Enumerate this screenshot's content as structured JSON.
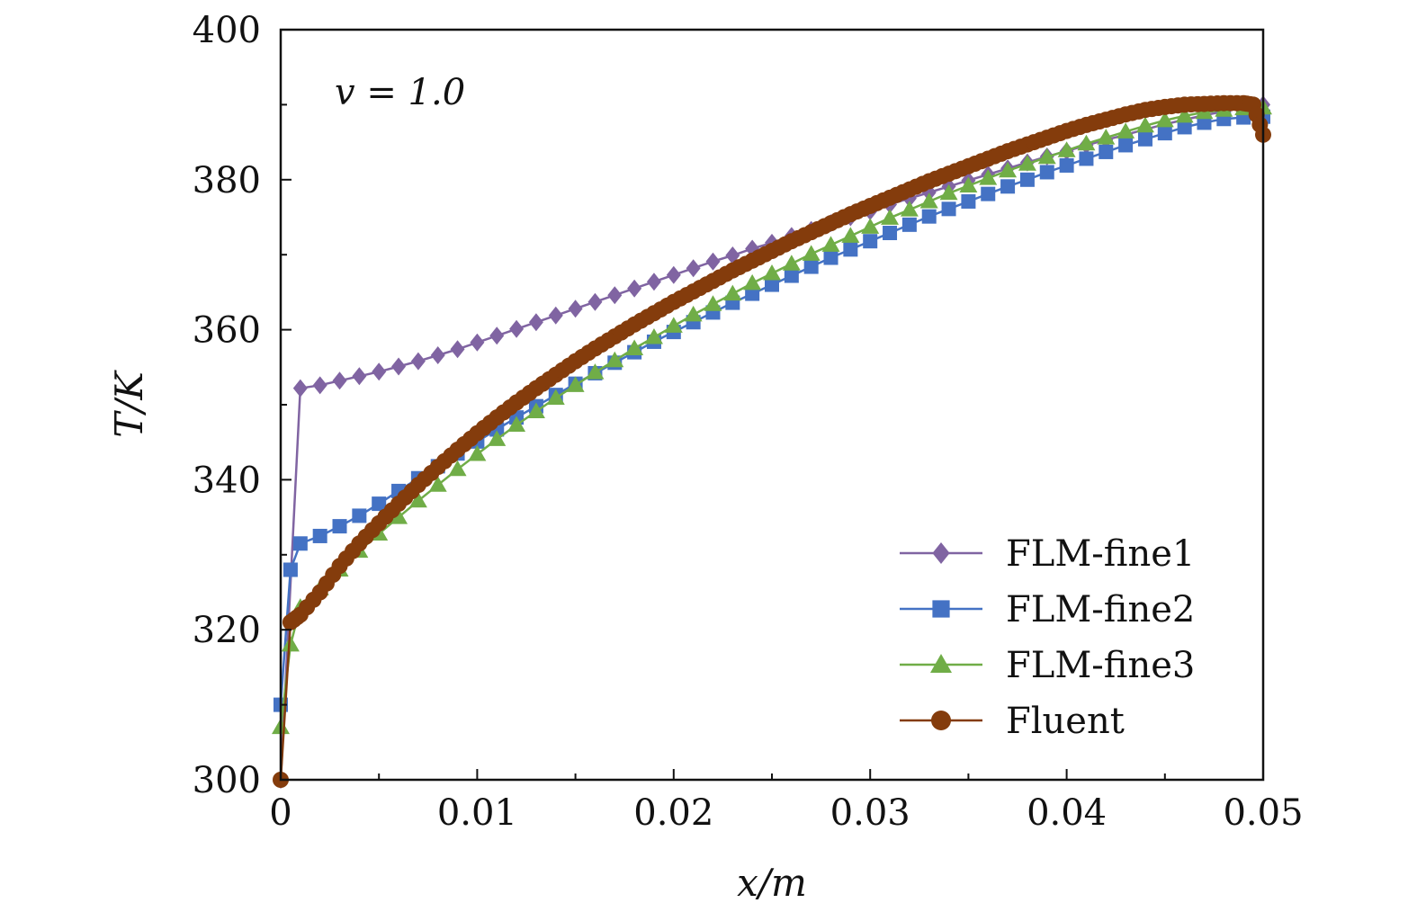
{
  "chart_data": {
    "type": "line",
    "title": "",
    "xlabel": "x/m",
    "ylabel": "T/K",
    "xlim": [
      0,
      0.05
    ],
    "ylim": [
      300,
      400
    ],
    "x_ticks": [
      0,
      0.01,
      0.02,
      0.03,
      0.04,
      0.05
    ],
    "x_tick_labels": [
      "0",
      "0.01",
      "0.02",
      "0.03",
      "0.04",
      "0.05"
    ],
    "y_ticks": [
      300,
      320,
      340,
      360,
      380,
      400
    ],
    "y_tick_labels": [
      "300",
      "320",
      "340",
      "360",
      "380",
      "400"
    ],
    "grid": false,
    "legend_position": "bottom-right",
    "annotation": "v = 1.0",
    "series": [
      {
        "name": "FLM-fine1",
        "color": "#8064a2",
        "marker": "diamond",
        "x": [
          0,
          0.001,
          0.002,
          0.003,
          0.004,
          0.005,
          0.006,
          0.007,
          0.008,
          0.009,
          0.01,
          0.011,
          0.012,
          0.013,
          0.014,
          0.015,
          0.016,
          0.017,
          0.018,
          0.019,
          0.02,
          0.021,
          0.022,
          0.023,
          0.024,
          0.025,
          0.026,
          0.027,
          0.028,
          0.029,
          0.03,
          0.031,
          0.032,
          0.033,
          0.034,
          0.035,
          0.036,
          0.037,
          0.038,
          0.039,
          0.04,
          0.041,
          0.042,
          0.043,
          0.044,
          0.045,
          0.046,
          0.047,
          0.048,
          0.049,
          0.05
        ],
        "y": [
          300,
          352.2,
          352.6,
          353.2,
          353.8,
          354.4,
          355.1,
          355.8,
          356.6,
          357.4,
          358.3,
          359.2,
          360.1,
          361.0,
          361.9,
          362.8,
          363.7,
          364.6,
          365.5,
          366.4,
          367.3,
          368.2,
          369.1,
          369.9,
          370.8,
          371.6,
          372.5,
          373.3,
          374.2,
          375.0,
          375.8,
          376.7,
          377.5,
          378.3,
          379.1,
          379.9,
          380.7,
          381.5,
          382.3,
          383.1,
          383.8,
          384.6,
          385.3,
          386.0,
          386.7,
          387.4,
          388.0,
          388.6,
          389.1,
          389.6,
          390.0
        ]
      },
      {
        "name": "FLM-fine2",
        "color": "#4472c4",
        "marker": "square",
        "x": [
          0,
          0.0005,
          0.001,
          0.002,
          0.003,
          0.004,
          0.005,
          0.006,
          0.007,
          0.008,
          0.009,
          0.01,
          0.011,
          0.012,
          0.013,
          0.014,
          0.015,
          0.016,
          0.017,
          0.018,
          0.019,
          0.02,
          0.021,
          0.022,
          0.023,
          0.024,
          0.025,
          0.026,
          0.027,
          0.028,
          0.029,
          0.03,
          0.031,
          0.032,
          0.033,
          0.034,
          0.035,
          0.036,
          0.037,
          0.038,
          0.039,
          0.04,
          0.041,
          0.042,
          0.043,
          0.044,
          0.045,
          0.046,
          0.047,
          0.048,
          0.049,
          0.05
        ],
        "y": [
          310.0,
          328.0,
          331.5,
          332.5,
          333.8,
          335.2,
          336.8,
          338.5,
          340.2,
          341.8,
          343.5,
          345.1,
          346.7,
          348.3,
          349.8,
          351.3,
          352.8,
          354.2,
          355.6,
          357.0,
          358.4,
          359.7,
          361.0,
          362.3,
          363.6,
          364.8,
          366.0,
          367.2,
          368.4,
          369.6,
          370.7,
          371.8,
          372.9,
          374.0,
          375.1,
          376.1,
          377.1,
          378.1,
          379.1,
          380.0,
          381.0,
          381.9,
          382.8,
          383.7,
          384.6,
          385.4,
          386.2,
          387.0,
          387.6,
          388.1,
          388.3,
          388.4
        ]
      },
      {
        "name": "FLM-fine3",
        "color": "#70ad47",
        "marker": "triangle",
        "x": [
          0,
          0.0005,
          0.001,
          0.002,
          0.003,
          0.004,
          0.005,
          0.006,
          0.007,
          0.008,
          0.009,
          0.01,
          0.011,
          0.012,
          0.013,
          0.014,
          0.015,
          0.016,
          0.017,
          0.018,
          0.019,
          0.02,
          0.021,
          0.022,
          0.023,
          0.024,
          0.025,
          0.026,
          0.027,
          0.028,
          0.029,
          0.03,
          0.031,
          0.032,
          0.033,
          0.034,
          0.035,
          0.036,
          0.037,
          0.038,
          0.039,
          0.04,
          0.041,
          0.042,
          0.043,
          0.044,
          0.045,
          0.046,
          0.047,
          0.048,
          0.049,
          0.05
        ],
        "y": [
          307.0,
          318.0,
          323.0,
          325.5,
          328.0,
          330.5,
          332.8,
          335.0,
          337.2,
          339.3,
          341.4,
          343.4,
          345.4,
          347.3,
          349.1,
          350.9,
          352.6,
          354.3,
          355.9,
          357.5,
          359.0,
          360.5,
          362.0,
          363.4,
          364.8,
          366.2,
          367.5,
          368.8,
          370.1,
          371.3,
          372.5,
          373.7,
          374.9,
          376.0,
          377.1,
          378.2,
          379.2,
          380.2,
          381.2,
          382.1,
          383.0,
          383.9,
          384.8,
          385.6,
          386.4,
          387.2,
          387.9,
          388.5,
          389.0,
          389.3,
          389.5,
          389.6
        ]
      },
      {
        "name": "Fluent",
        "color": "#843c0c",
        "marker": "circle",
        "x": [
          0,
          0.0005,
          0.001,
          0.002,
          0.003,
          0.004,
          0.005,
          0.006,
          0.007,
          0.008,
          0.009,
          0.01,
          0.011,
          0.012,
          0.013,
          0.014,
          0.015,
          0.016,
          0.017,
          0.018,
          0.019,
          0.02,
          0.021,
          0.022,
          0.023,
          0.024,
          0.025,
          0.026,
          0.027,
          0.028,
          0.029,
          0.03,
          0.031,
          0.032,
          0.033,
          0.034,
          0.035,
          0.036,
          0.037,
          0.038,
          0.039,
          0.04,
          0.041,
          0.042,
          0.043,
          0.044,
          0.045,
          0.046,
          0.047,
          0.048,
          0.049,
          0.0495,
          0.05
        ],
        "y": [
          300.0,
          321.0,
          322.0,
          325.0,
          328.5,
          331.5,
          334.2,
          336.8,
          339.3,
          341.7,
          344.0,
          346.2,
          348.3,
          350.3,
          352.2,
          354.0,
          355.8,
          357.5,
          359.1,
          360.7,
          362.2,
          363.7,
          365.1,
          366.5,
          367.9,
          369.2,
          370.5,
          371.8,
          373.0,
          374.2,
          375.4,
          376.5,
          377.6,
          378.7,
          379.8,
          380.8,
          381.8,
          382.8,
          383.8,
          384.7,
          385.6,
          386.5,
          387.3,
          388.0,
          388.7,
          389.3,
          389.7,
          390.0,
          390.1,
          390.2,
          390.2,
          390.0,
          386.0
        ]
      }
    ]
  }
}
